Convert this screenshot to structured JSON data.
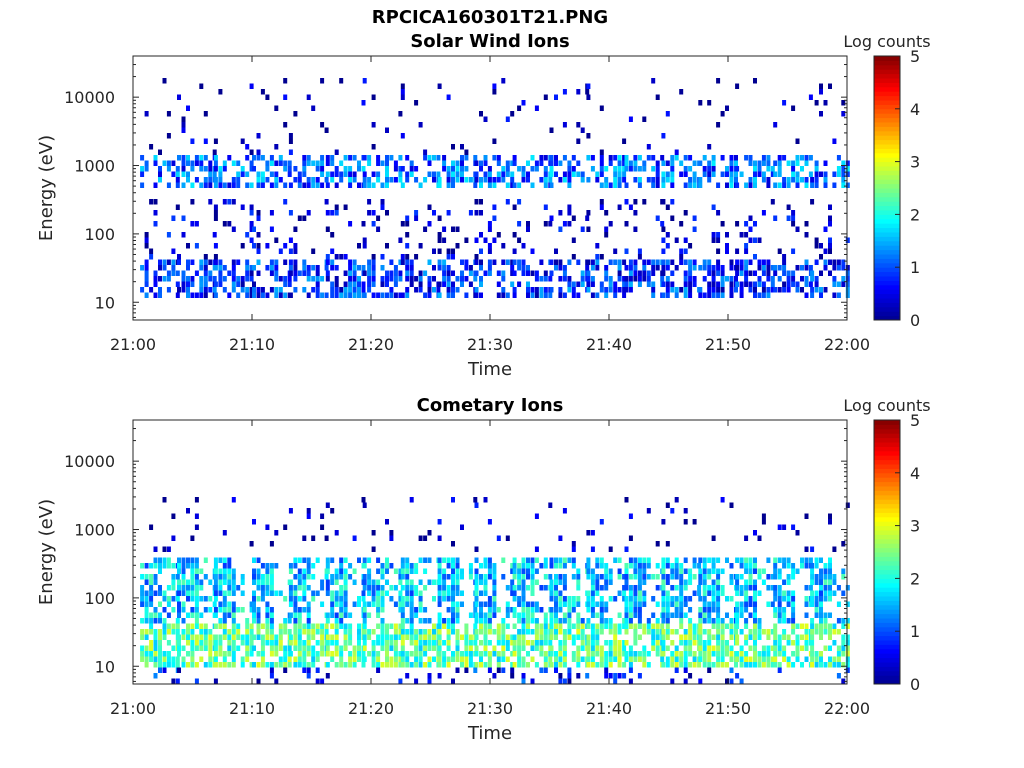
{
  "figure_title": "RPCICA160301T21.PNG",
  "colormap": [
    "#00008f",
    "#0000ff",
    "#0080ff",
    "#00ffff",
    "#80ff80",
    "#ffff00",
    "#ff8000",
    "#ff0000",
    "#800000"
  ],
  "chart_data": [
    {
      "type": "heatmap",
      "title": "Solar Wind Ions",
      "xlabel": "Time",
      "ylabel": "Energy (eV)",
      "x_ticks": [
        "21:00",
        "21:10",
        "21:20",
        "21:30",
        "21:40",
        "21:50",
        "22:00"
      ],
      "x_range": [
        "21:00",
        "22:00"
      ],
      "y_scale": "log",
      "y_ticks": [
        "10",
        "100",
        "1000",
        "10000"
      ],
      "y_range": [
        5.5,
        40000
      ],
      "colorbar": {
        "label": "Log counts",
        "range": [
          0,
          5
        ],
        "ticks": [
          "0",
          "1",
          "2",
          "3",
          "4",
          "5"
        ]
      },
      "sweep_start_minutes": [
        0.6,
        3.7,
        6.8,
        10.0,
        13.1,
        16.2,
        19.3,
        22.5,
        25.6,
        28.7,
        31.9,
        35.0,
        38.1,
        41.3,
        44.4,
        47.5,
        50.6,
        53.8,
        56.9
      ],
      "bands": [
        {
          "e_min": 12,
          "e_max": 45,
          "log_counts": 0.8
        },
        {
          "e_min": 45,
          "e_max": 300,
          "log_counts": 0.3
        },
        {
          "e_min": 500,
          "e_max": 1300,
          "log_counts": 1.1
        },
        {
          "e_min": 1300,
          "e_max": 20000,
          "log_counts": 0.1
        }
      ]
    },
    {
      "type": "heatmap",
      "title": "Cometary Ions",
      "xlabel": "Time",
      "ylabel": "Energy (eV)",
      "x_ticks": [
        "21:00",
        "21:10",
        "21:20",
        "21:30",
        "21:40",
        "21:50",
        "22:00"
      ],
      "x_range": [
        "21:00",
        "22:00"
      ],
      "y_scale": "log",
      "y_ticks": [
        "10",
        "100",
        "1000",
        "10000"
      ],
      "y_range": [
        5.5,
        40000
      ],
      "colorbar": {
        "label": "Log counts",
        "range": [
          0,
          5
        ],
        "ticks": [
          "0",
          "1",
          "2",
          "3",
          "4",
          "5"
        ]
      },
      "sweep_start_minutes": [
        0.6,
        3.7,
        6.8,
        10.0,
        13.1,
        16.2,
        19.3,
        22.5,
        25.6,
        28.7,
        31.9,
        35.0,
        38.1,
        41.3,
        44.4,
        47.5,
        50.6,
        53.8,
        56.9
      ],
      "bands": [
        {
          "e_min": 6,
          "e_max": 10,
          "log_counts": 0.6
        },
        {
          "e_min": 10,
          "e_max": 45,
          "log_counts": 2.3
        },
        {
          "e_min": 45,
          "e_max": 380,
          "log_counts": 1.6
        },
        {
          "e_min": 500,
          "e_max": 3000,
          "log_counts": 0.1
        }
      ]
    }
  ]
}
